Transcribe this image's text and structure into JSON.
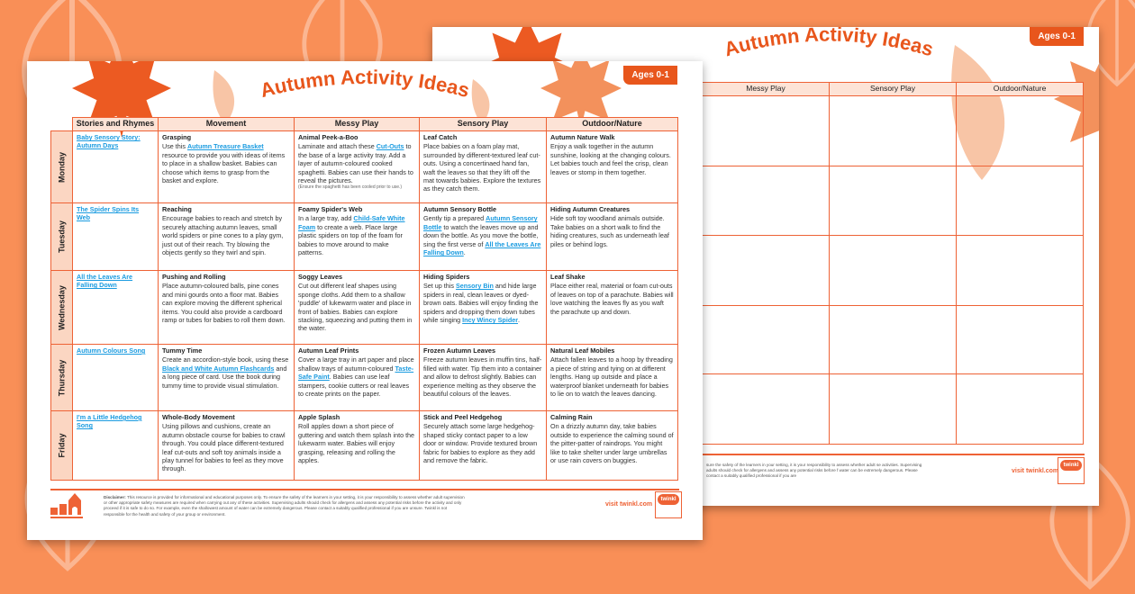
{
  "colors": {
    "background": "#f98f57",
    "accent": "#ee6235",
    "header_fill": "#fde3d6",
    "link": "#1a9be0"
  },
  "title": "Autumn Activity Ideas",
  "badge": "Ages 0-1",
  "columns": [
    "Stories and Rhymes",
    "Movement",
    "Messy Play",
    "Sensory Play",
    "Outdoor/Nature"
  ],
  "back_columns": [
    "Messy Play",
    "Sensory Play",
    "Outdoor/Nature"
  ],
  "rows": [
    {
      "day": "Monday",
      "cells": [
        {
          "title": "",
          "body": [
            {
              "t": "Baby Sensory Story: Autumn Days",
              "link": true
            }
          ]
        },
        {
          "title": "Grasping",
          "body": [
            {
              "t": "Use this "
            },
            {
              "t": "Autumn Treasure Basket",
              "link": true
            },
            {
              "t": " resource to provide you with ideas of items to place in a shallow basket. Babies can choose which items to grasp from the basket and explore."
            }
          ]
        },
        {
          "title": "Animal Peek-a-Boo",
          "body": [
            {
              "t": "Laminate and attach these "
            },
            {
              "t": "Cut-Outs",
              "link": true
            },
            {
              "t": " to the base of a large activity tray. Add a layer of autumn-coloured cooked spaghetti. Babies can use their hands to reveal the pictures."
            }
          ],
          "note": "(Ensure the spaghetti has been cooled prior to use.)"
        },
        {
          "title": "Leaf Catch",
          "body": [
            {
              "t": "Place babies on a foam play mat, surrounded by different-textured leaf cut-outs. Using a concertinaed hand fan, waft the leaves so that they lift off the mat towards babies. Explore the textures as they catch them."
            }
          ]
        },
        {
          "title": "Autumn Nature Walk",
          "body": [
            {
              "t": "Enjoy a walk together in the autumn sunshine, looking at the changing colours. Let babies touch and feel the crisp, clean leaves or stomp in them together."
            }
          ]
        }
      ]
    },
    {
      "day": "Tuesday",
      "cells": [
        {
          "title": "",
          "body": [
            {
              "t": "The Spider Spins Its Web",
              "link": true
            }
          ]
        },
        {
          "title": "Reaching",
          "body": [
            {
              "t": "Encourage babies to reach and stretch by securely attaching autumn leaves, small world spiders or pine cones to a play gym, just out of their reach. Try blowing the objects gently so they twirl and spin."
            }
          ]
        },
        {
          "title": "Foamy Spider's Web",
          "body": [
            {
              "t": "In a large tray, add "
            },
            {
              "t": "Child-Safe White Foam",
              "link": true
            },
            {
              "t": " to create a web. Place large plastic spiders on top of the foam for babies to move around to make patterns."
            }
          ]
        },
        {
          "title": "Autumn Sensory Bottle",
          "body": [
            {
              "t": "Gently tip a prepared "
            },
            {
              "t": "Autumn Sensory Bottle",
              "link": true
            },
            {
              "t": " to watch the leaves move up and down the bottle. As you move the bottle, sing the first verse of "
            },
            {
              "t": "All the Leaves Are Falling Down",
              "link": true
            },
            {
              "t": "."
            }
          ]
        },
        {
          "title": "Hiding Autumn Creatures",
          "body": [
            {
              "t": "Hide soft toy woodland animals outside. Take babies on a short walk to find the hiding creatures, such as underneath leaf piles or behind logs."
            }
          ]
        }
      ]
    },
    {
      "day": "Wednesday",
      "cells": [
        {
          "title": "",
          "body": [
            {
              "t": "All the Leaves Are Falling Down",
              "link": true
            }
          ]
        },
        {
          "title": "Pushing and Rolling",
          "body": [
            {
              "t": "Place autumn-coloured balls, pine cones and mini gourds onto a floor mat. Babies can explore moving the different spherical items. You could also provide a cardboard ramp or tubes for babies to roll them down."
            }
          ]
        },
        {
          "title": "Soggy Leaves",
          "body": [
            {
              "t": "Cut out different leaf shapes using sponge cloths. Add them to a shallow 'puddle' of lukewarm water and place in front of babies. Babies can explore stacking, squeezing and putting them in the water."
            }
          ]
        },
        {
          "title": "Hiding Spiders",
          "body": [
            {
              "t": "Set up this "
            },
            {
              "t": "Sensory Bin",
              "link": true
            },
            {
              "t": " and hide large spiders in real, clean leaves or dyed-brown oats. Babies will enjoy finding the spiders and dropping them down tubes while singing "
            },
            {
              "t": "Incy Wincy Spider",
              "link": true
            },
            {
              "t": "."
            }
          ]
        },
        {
          "title": "Leaf Shake",
          "body": [
            {
              "t": "Place either real, material or foam cut-outs of leaves on top of a parachute. Babies will love watching the leaves fly as you waft the parachute up and down."
            }
          ]
        }
      ]
    },
    {
      "day": "Thursday",
      "cells": [
        {
          "title": "",
          "body": [
            {
              "t": "Autumn Colours Song",
              "link": true
            }
          ]
        },
        {
          "title": "Tummy Time",
          "body": [
            {
              "t": "Create an accordion-style book, using these "
            },
            {
              "t": "Black and White Autumn Flashcards",
              "link": true
            },
            {
              "t": " and a long piece of card. Use the book during tummy time to provide visual stimulation."
            }
          ]
        },
        {
          "title": "Autumn Leaf Prints",
          "body": [
            {
              "t": "Cover a large tray in art paper and place shallow trays of autumn-coloured "
            },
            {
              "t": "Taste-Safe Paint",
              "link": true
            },
            {
              "t": ". Babies can use leaf stampers, cookie cutters or real leaves to create prints on the paper."
            }
          ]
        },
        {
          "title": "Frozen Autumn Leaves",
          "body": [
            {
              "t": "Freeze autumn leaves in muffin tins, half-filled with water. Tip them into a container and allow to defrost slightly. Babies can experience melting as they observe the beautiful colours of the leaves."
            }
          ]
        },
        {
          "title": "Natural Leaf Mobiles",
          "body": [
            {
              "t": "Attach fallen leaves to a hoop by threading a piece of string and tying on at different lengths. Hang up outside and place a waterproof blanket underneath for babies to lie on to watch the leaves dancing."
            }
          ]
        }
      ]
    },
    {
      "day": "Friday",
      "cells": [
        {
          "title": "",
          "body": [
            {
              "t": "I'm a Little Hedgehog Song",
              "link": true
            }
          ]
        },
        {
          "title": "Whole-Body Movement",
          "body": [
            {
              "t": "Using pillows and cushions, create an autumn obstacle course for babies to crawl through. You could place different-textured leaf cut-outs and soft toy animals inside a play tunnel for babies to feel as they move through."
            }
          ]
        },
        {
          "title": "Apple Splash",
          "body": [
            {
              "t": "Roll apples down a short piece of guttering and watch them splash into the lukewarm water. Babies will enjoy grasping, releasing and rolling the apples."
            }
          ]
        },
        {
          "title": "Stick and Peel Hedgehog",
          "body": [
            {
              "t": "Securely attach some large hedgehog-shaped sticky contact paper to a low door or window. Provide textured brown fabric for babies to explore as they add and remove the fabric."
            }
          ]
        },
        {
          "title": "Calming Rain",
          "body": [
            {
              "t": "On a drizzly autumn day, take babies outside to experience the calming sound of the pitter-patter of raindrops. You might like to take shelter under large umbrellas or use rain covers on buggies."
            }
          ]
        }
      ]
    }
  ],
  "footer": {
    "disclaimer_label": "Disclaimer:",
    "disclaimer": " This resource is provided for informational and educational purposes only. To ensure the safety of the learners in your setting, it is your responsibility to assess whether adult supervision or other appropriate safety measures are required when carrying out any of these activities. Supervising adults should check for allergens and assess any potential risks before the activity and only proceed if it is safe to do so. For example, even the shallowest amount of water can be extremely dangerous. Please contact a suitably qualified professional if you are unsure. Twinkl is not responsible for the health and safety of your group or environment.",
    "back_disclaimer": "sure the safety of the learners in your setting, it is your responsibility to assess whether adult se activities. Supervising adults should check for allergens and assess any potential risks before f water can be extremely dangerous. Please contact a suitably qualified professional if you are",
    "visit": "visit twinkl.com",
    "logo_text": "twinkl"
  }
}
